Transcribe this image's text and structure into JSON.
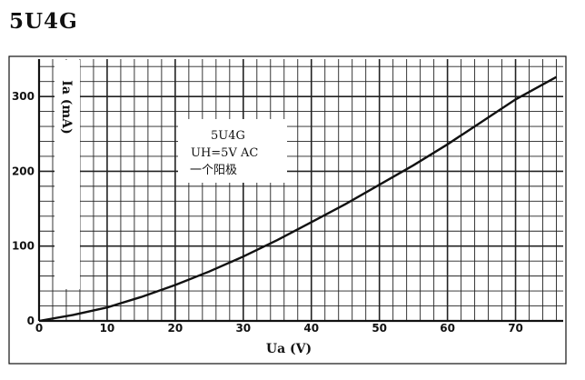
{
  "page": {
    "title": "5U4G"
  },
  "chart_data": {
    "type": "line",
    "xlabel": "Ua (V)",
    "ylabel": "Ia (mA)",
    "xlim": [
      0,
      77
    ],
    "ylim": [
      0,
      350
    ],
    "xticks": [
      "0",
      "10",
      "20",
      "30",
      "40",
      "50",
      "60",
      "70"
    ],
    "yticks": [
      "0",
      "100",
      "200",
      "300"
    ],
    "grid": true,
    "annotation": [
      "5U4G",
      "UH=5V AC",
      "一个阳极"
    ],
    "series": [
      {
        "x": [
          0,
          5,
          10,
          15,
          20,
          25,
          30,
          35,
          40,
          45,
          50,
          55,
          60,
          65,
          70,
          76
        ],
        "y": [
          0,
          8,
          18,
          32,
          48,
          66,
          86,
          108,
          132,
          156,
          182,
          208,
          236,
          266,
          296,
          326
        ]
      }
    ]
  }
}
